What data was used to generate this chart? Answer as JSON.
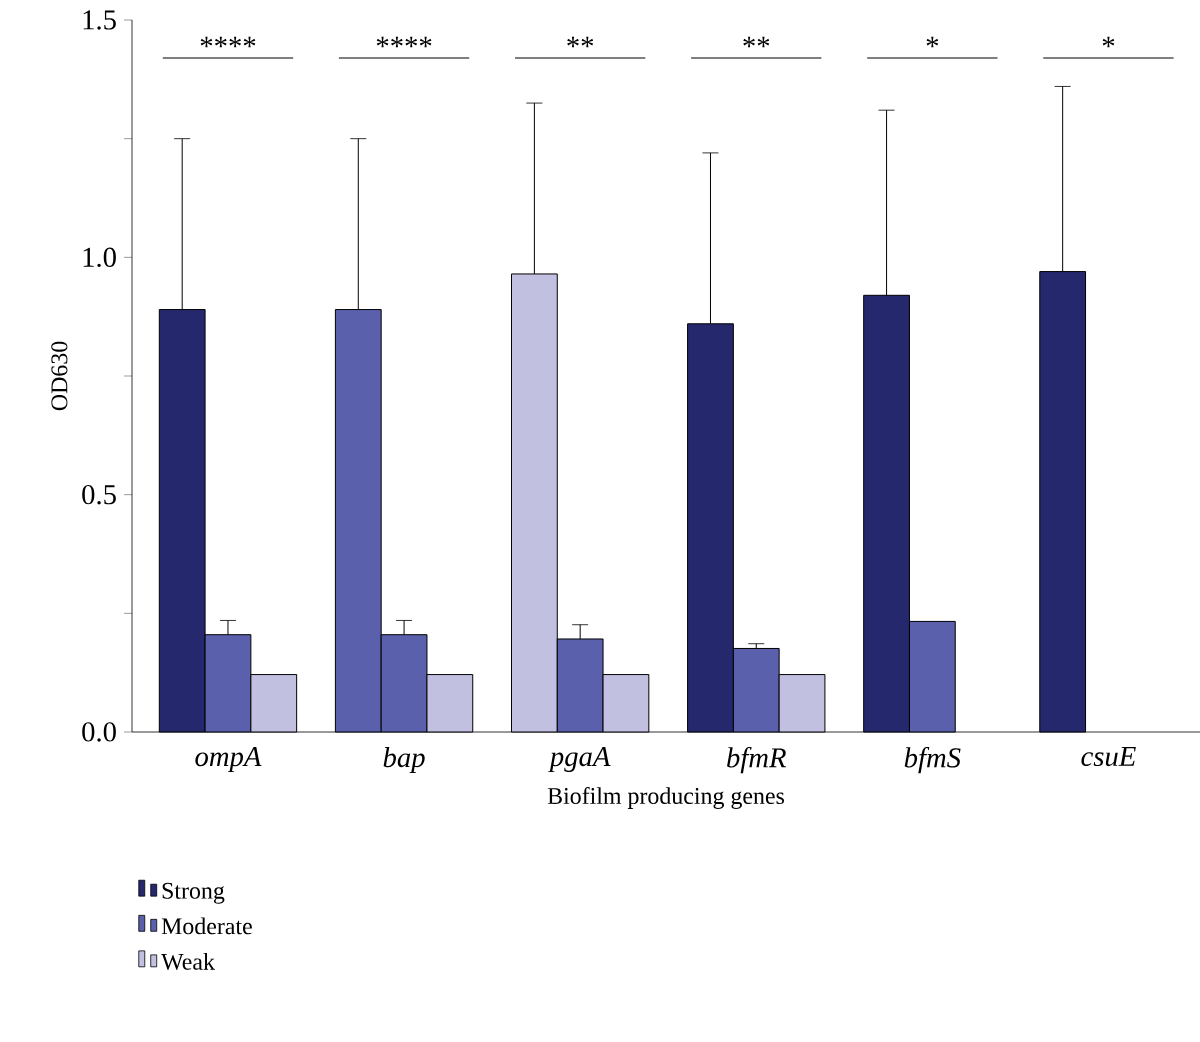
{
  "chart_data": {
    "type": "bar",
    "xlabel": "Biofilm producing genes",
    "ylabel": "OD630",
    "categories": [
      "ompA",
      "bap",
      "pgaA",
      "bfmR",
      "bfmS",
      "csuE"
    ],
    "series": [
      {
        "name": "Strong",
        "color": "#26286e",
        "colors": [
          "#26286e",
          "#5a60ab",
          "#c2c0e0",
          "#26286e",
          "#26286e",
          "#26286e"
        ],
        "values": [
          0.89,
          0.89,
          0.965,
          0.86,
          0.92,
          0.97
        ],
        "errors": [
          0.36,
          0.36,
          0.36,
          0.36,
          0.39,
          0.39
        ]
      },
      {
        "name": "Moderate",
        "color": "#5a60ab",
        "values": [
          0.205,
          0.205,
          0.196,
          0.176,
          0.233,
          null
        ],
        "errors": [
          0.03,
          0.03,
          0.03,
          0.01,
          null,
          null
        ]
      },
      {
        "name": "Weak",
        "color": "#c2c0e0",
        "values": [
          0.121,
          0.121,
          0.121,
          0.121,
          null,
          null
        ]
      }
    ],
    "ylim": [
      0,
      1.5
    ],
    "yticks": [
      {
        "value": 0,
        "label": "0.0"
      },
      {
        "value": 0.25,
        "label": null
      },
      0.5,
      {
        "value": 0.75,
        "label": null
      },
      {
        "value": 1.0,
        "label": "1.0"
      },
      {
        "value": 1.25,
        "label": null
      },
      1.5
    ],
    "annotations": [
      "****",
      "****",
      "**",
      "**",
      "*",
      "*"
    ],
    "legend": "bottom",
    "grid": false
  }
}
